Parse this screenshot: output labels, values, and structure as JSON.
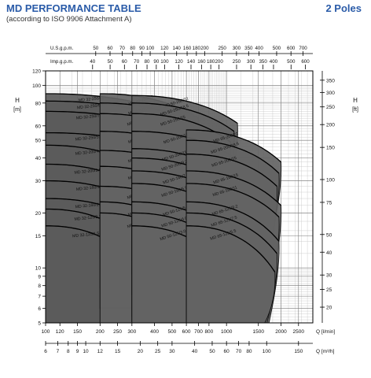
{
  "header": {
    "title": "MD PERFORMANCE TABLE",
    "subtitle": "(according to ISO 9906 Attachment A)",
    "poles": "2 Poles"
  },
  "chart_data": {
    "type": "line",
    "title": "MD PERFORMANCE TABLE",
    "x_scale": "log",
    "y_scale": "log",
    "xlim_lpm": [
      100,
      3000
    ],
    "ylim_m": [
      5,
      120
    ],
    "axes": {
      "left_label": "H\n[m]",
      "right_label": "H\n[ft]",
      "bottom_label": "Q [l/min]",
      "bottom2_label": "Q [m³/h]",
      "top1_label": "U.S.g.p.m.",
      "top2_label": "Imp.g.p.m."
    },
    "ticks": {
      "bottom_lpm": [
        "100",
        "120",
        "150",
        "200",
        "250",
        "300",
        "400",
        "500",
        "600",
        "700",
        "800",
        "1000",
        "1500",
        "2000",
        "2500"
      ],
      "bottom_m3h": [
        "6",
        "7",
        "8",
        "9",
        "10",
        "12",
        "15",
        "20",
        "25",
        "30",
        "40",
        "50",
        "60",
        "70",
        "80",
        "100",
        "150"
      ],
      "top_usgpm": [
        "50",
        "60",
        "70",
        "80",
        "90",
        "100",
        "120",
        "140",
        "160",
        "180",
        "200",
        "250",
        "300",
        "350",
        "400",
        "500",
        "600",
        "700"
      ],
      "top_impgpm": [
        "40",
        "50",
        "60",
        "70",
        "80",
        "90",
        "100",
        "120",
        "140",
        "160",
        "180",
        "200",
        "250",
        "300",
        "350",
        "400",
        "500",
        "600"
      ],
      "left_m": [
        "5",
        "6",
        "7",
        "8",
        "9",
        "10",
        "15",
        "20",
        "30",
        "40",
        "50",
        "60",
        "80",
        "100",
        "120"
      ],
      "right_ft": [
        "20",
        "25",
        "30",
        "40",
        "50",
        "75",
        "100",
        "150",
        "200",
        "250",
        "300",
        "350"
      ]
    },
    "grid": true,
    "legend": "none",
    "families": [
      {
        "name": "MD 32",
        "q_range_lpm": [
          100,
          400
        ],
        "curves": [
          {
            "label": "MD 32-250/11",
            "shut_off_m": 90,
            "end_m": 76,
            "end_q_lpm": 400
          },
          {
            "label": "MD 32-250/9.2",
            "shut_off_m": 82,
            "end_m": 70,
            "end_q_lpm": 390
          },
          {
            "label": "MD 32-250/7.5",
            "shut_off_m": 72,
            "end_m": 61,
            "end_q_lpm": 380
          },
          {
            "label": "MD 32-250/5.5",
            "shut_off_m": 55,
            "end_m": 47,
            "end_q_lpm": 370
          },
          {
            "label": "MD 32-200/4.0",
            "shut_off_m": 47,
            "end_m": 33,
            "end_q_lpm": 370
          },
          {
            "label": "MD 32-200/3.0",
            "shut_off_m": 37,
            "end_m": 26,
            "end_q_lpm": 360
          },
          {
            "label": "MD 32-160/3.0",
            "shut_off_m": 30,
            "end_m": 21,
            "end_q_lpm": 380
          },
          {
            "label": "MD 32-160/2.2",
            "shut_off_m": 24,
            "end_m": 17,
            "end_q_lpm": 370
          },
          {
            "label": "MD 32-125/2.2",
            "shut_off_m": 21,
            "end_m": 12,
            "end_q_lpm": 360
          },
          {
            "label": "MD 32-125/1.5",
            "shut_off_m": 17,
            "end_m": 9.5,
            "end_q_lpm": 340
          }
        ]
      },
      {
        "name": "MD 40",
        "q_range_lpm": [
          200,
          800
        ],
        "curves": [
          {
            "label": "MD 40-250/15",
            "shut_off_m": 90,
            "end_m": 66,
            "end_q_lpm": 700
          },
          {
            "label": "MD 40-250/11",
            "shut_off_m": 80,
            "end_m": 59,
            "end_q_lpm": 690
          },
          {
            "label": "MD 40-250/9.2",
            "shut_off_m": 70,
            "end_m": 51,
            "end_q_lpm": 680
          },
          {
            "label": "MD 40-200/7.5",
            "shut_off_m": 56,
            "end_m": 41,
            "end_q_lpm": 700
          },
          {
            "label": "MD 40-200/5.5",
            "shut_off_m": 44,
            "end_m": 32,
            "end_q_lpm": 700
          },
          {
            "label": "MD 40-160/4.0",
            "shut_off_m": 36,
            "end_m": 23,
            "end_q_lpm": 700
          },
          {
            "label": "MD 40-160/3.0",
            "shut_off_m": 28,
            "end_m": 19,
            "end_q_lpm": 680
          },
          {
            "label": "MD 40-125/3.0",
            "shut_off_m": 23,
            "end_m": 13,
            "end_q_lpm": 700
          },
          {
            "label": "MD 40-125/2.2",
            "shut_off_m": 20,
            "end_m": 10,
            "end_q_lpm": 680
          }
        ]
      },
      {
        "name": "MD 50",
        "q_range_lpm": [
          300,
          1300
        ],
        "curves": [
          {
            "label": "MD 50-250/22",
            "shut_off_m": 88,
            "end_m": 62,
            "end_q_lpm": 1150
          },
          {
            "label": "MD 50-250/18.5",
            "shut_off_m": 80,
            "end_m": 56,
            "end_q_lpm": 1100
          },
          {
            "label": "MD 50-250/15",
            "shut_off_m": 70,
            "end_m": 49,
            "end_q_lpm": 1050
          },
          {
            "label": "MD 50-200/15",
            "shut_off_m": 56,
            "end_m": 39,
            "end_q_lpm": 1150
          },
          {
            "label": "MD 50-200/11",
            "shut_off_m": 45,
            "end_m": 31,
            "end_q_lpm": 1100
          },
          {
            "label": "MD 50-200/9.2",
            "shut_off_m": 40,
            "end_m": 27,
            "end_q_lpm": 1100
          },
          {
            "label": "MD 50-160/7.5",
            "shut_off_m": 34,
            "end_m": 22,
            "end_q_lpm": 1150
          },
          {
            "label": "MD 50-160/5.5",
            "shut_off_m": 29,
            "end_m": 18,
            "end_q_lpm": 1100
          },
          {
            "label": "MD 50-125/5.5",
            "shut_off_m": 23,
            "end_m": 13,
            "end_q_lpm": 1150
          },
          {
            "label": "MD 50-125/4.0",
            "shut_off_m": 20,
            "end_m": 11,
            "end_q_lpm": 1100
          },
          {
            "label": "MD 50-125/3.0",
            "shut_off_m": 17,
            "end_m": 9,
            "end_q_lpm": 1050
          }
        ]
      },
      {
        "name": "MD 65",
        "q_range_lpm": [
          600,
          2500
        ],
        "curves": [
          {
            "label": "MD 65-200/22",
            "shut_off_m": 57,
            "end_m": 38,
            "end_q_lpm": 2000
          },
          {
            "label": "MD 65-200/18.5",
            "shut_off_m": 50,
            "end_m": 33,
            "end_q_lpm": 1950
          },
          {
            "label": "MD 65-200/15",
            "shut_off_m": 42,
            "end_m": 28,
            "end_q_lpm": 1900
          },
          {
            "label": "MD 65-160/15",
            "shut_off_m": 34,
            "end_m": 22,
            "end_q_lpm": 2000
          },
          {
            "label": "MD 65-160/11",
            "shut_off_m": 29,
            "end_m": 19,
            "end_q_lpm": 1950
          },
          {
            "label": "MD 65-125/9.2",
            "shut_off_m": 23,
            "end_m": 14,
            "end_q_lpm": 1950
          },
          {
            "label": "MD 65-125/7.5",
            "shut_off_m": 20,
            "end_m": 12,
            "end_q_lpm": 1900
          },
          {
            "label": "MD 65-125/5.5",
            "shut_off_m": 17,
            "end_m": 9.5,
            "end_q_lpm": 1850
          }
        ]
      }
    ]
  }
}
